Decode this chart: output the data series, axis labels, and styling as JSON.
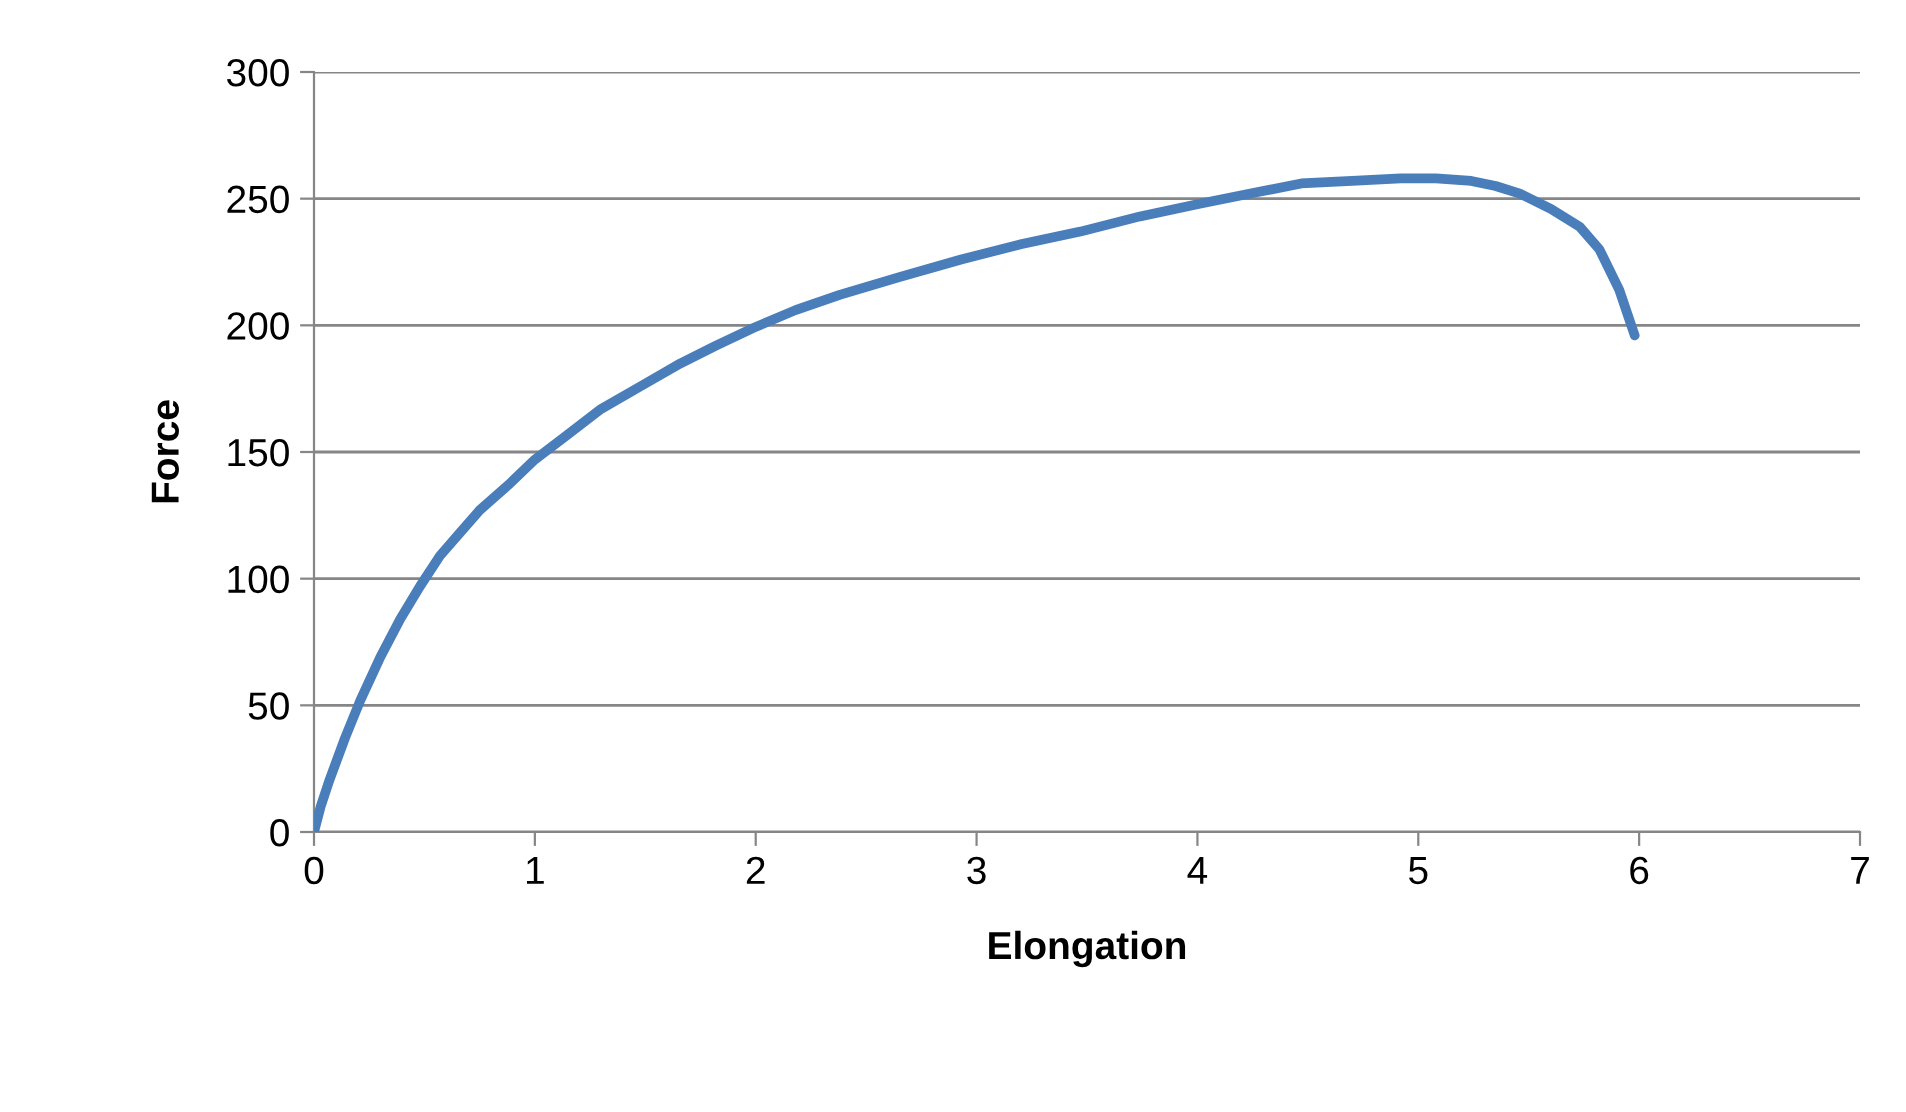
{
  "chart_data": {
    "type": "line",
    "xlabel": "Elongation",
    "ylabel": "Force",
    "series": [
      {
        "color": "#4a7ebb",
        "x": [
          0,
          0.03,
          0.07,
          0.14,
          0.21,
          0.3,
          0.39,
          0.48,
          0.57,
          0.66,
          0.75,
          0.88,
          1.0,
          1.15,
          1.3,
          1.48,
          1.66,
          1.82,
          1.99,
          2.18,
          2.38,
          2.65,
          2.93,
          3.2,
          3.47,
          3.74,
          4.01,
          4.24,
          4.47,
          4.7,
          4.92,
          5.08,
          5.24,
          5.35,
          5.46,
          5.6,
          5.73,
          5.82,
          5.91,
          5.98
        ],
        "values": [
          0,
          10,
          20.5,
          37,
          52,
          69,
          84,
          97,
          109,
          118,
          127,
          137,
          147,
          157,
          167,
          176,
          185,
          192,
          199,
          206,
          212,
          219,
          226,
          232,
          237,
          243,
          248,
          252,
          256,
          257,
          258,
          258,
          257,
          255,
          252,
          246,
          239,
          230,
          214,
          196
        ]
      }
    ],
    "xlim": [
      0,
      7
    ],
    "xticks": [
      0,
      1,
      2,
      3,
      4,
      5,
      6,
      7
    ],
    "ylim": [
      0,
      300
    ],
    "yticks": [
      0,
      50,
      100,
      150,
      200,
      250,
      300
    ],
    "grid": "y",
    "marker": "none",
    "line_style": "solid",
    "legend": false
  }
}
